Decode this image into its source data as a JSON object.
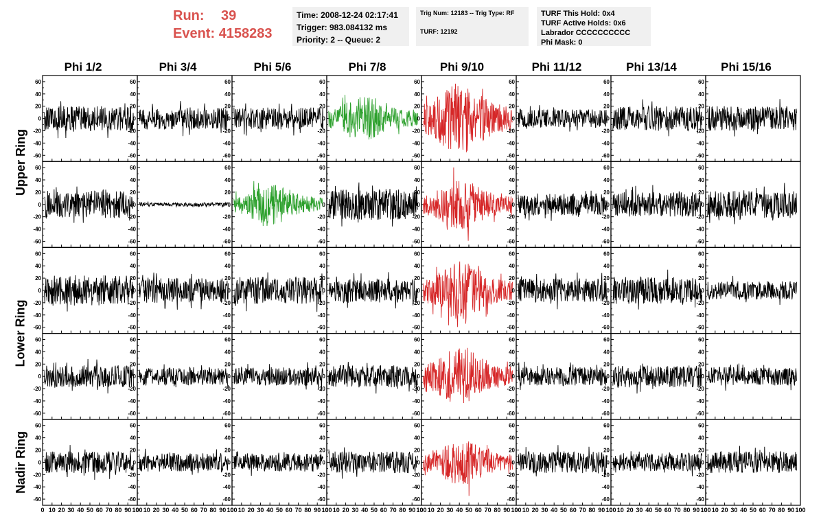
{
  "header": {
    "run_label": "Run:",
    "run_value": "39",
    "event_label": "Event:",
    "event_value": "4158283",
    "accent_color": "#d9534f"
  },
  "info_box_1": {
    "time": "Time: 2008-12-24 02:17:41",
    "trigger": "Trigger: 983.084132 ms",
    "priority": "Priority: 2 -- Queue: 2"
  },
  "info_box_2": {
    "trig": "Trig Num: 12183 -- Trig Type: RF",
    "turf": "TURF: 12192"
  },
  "info_box_3": {
    "hold": "TURF This Hold: 0x4",
    "active": "TURF Active Holds: 0x6",
    "labrador": "Labrador CCCCCCCCCC",
    "mask": "Phi Mask: 0"
  },
  "chart_data": {
    "type": "line",
    "columns": [
      "Phi 1/2",
      "Phi 3/4",
      "Phi 5/6",
      "Phi 7/8",
      "Phi 9/10",
      "Phi 11/12",
      "Phi 13/14",
      "Phi 15/16"
    ],
    "rows": [
      "Upper Ring",
      "Upper Ring",
      "Lower Ring",
      "Lower Ring",
      "Nadir Ring"
    ],
    "ring_labels": [
      {
        "label": "Upper Ring",
        "rows": [
          0,
          1
        ]
      },
      {
        "label": "Lower Ring",
        "rows": [
          2,
          3
        ]
      },
      {
        "label": "Nadir Ring",
        "rows": [
          4
        ]
      }
    ],
    "x_range": [
      0,
      100
    ],
    "y_range": [
      -70,
      70
    ],
    "x_ticks": [
      0,
      10,
      20,
      30,
      40,
      50,
      60,
      70,
      80,
      90,
      100
    ],
    "x_tick_labels": [
      "0",
      "10",
      "20",
      "30",
      "40",
      "50",
      "60",
      "70",
      "80",
      "90",
      "100"
    ],
    "y_ticks": [
      -60,
      -40,
      -20,
      0,
      20,
      40,
      60
    ],
    "y_tick_labels": [
      "-60",
      "-40",
      "-20",
      "0",
      "20",
      "40",
      "60"
    ],
    "colors": {
      "default": "#000000",
      "triggered_adjacent": "#2ca02c",
      "triggered": "#d62728"
    },
    "panels": [
      [
        "black",
        "black",
        "black",
        "green",
        "red",
        "black",
        "black",
        "black"
      ],
      [
        "black",
        "black",
        "green",
        "black",
        "red",
        "black",
        "black",
        "black"
      ],
      [
        "black",
        "black",
        "black",
        "black",
        "red",
        "black",
        "black",
        "black"
      ],
      [
        "black",
        "black",
        "black",
        "black",
        "red",
        "black",
        "black",
        "black"
      ],
      [
        "black",
        "black",
        "black",
        "black",
        "red",
        "black",
        "black",
        "black"
      ]
    ],
    "amplitudes": [
      [
        20,
        18,
        18,
        28,
        45,
        15,
        20,
        20
      ],
      [
        22,
        3,
        25,
        25,
        30,
        18,
        20,
        22
      ],
      [
        25,
        20,
        22,
        20,
        35,
        20,
        22,
        15
      ],
      [
        18,
        15,
        15,
        18,
        35,
        15,
        18,
        15
      ],
      [
        18,
        15,
        15,
        18,
        28,
        18,
        15,
        18
      ]
    ]
  }
}
